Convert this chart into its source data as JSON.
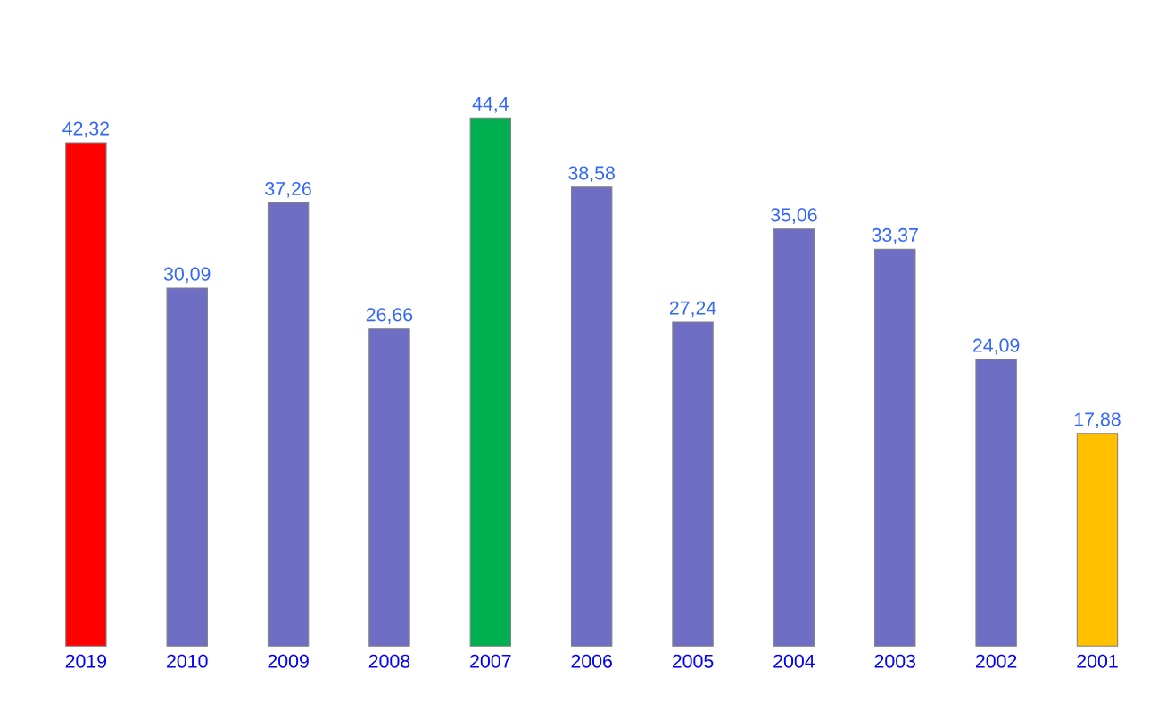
{
  "chart_data": {
    "type": "bar",
    "categories": [
      "2019",
      "2010",
      "2009",
      "2008",
      "2007",
      "2006",
      "2005",
      "2004",
      "2003",
      "2002",
      "2001"
    ],
    "values": [
      42.32,
      30.09,
      37.26,
      26.66,
      44.4,
      38.58,
      27.24,
      35.06,
      33.37,
      24.09,
      17.88
    ],
    "colors": [
      "#ff0000",
      "#6e6ec4",
      "#6e6ec4",
      "#6e6ec4",
      "#00b050",
      "#6e6ec4",
      "#6e6ec4",
      "#6e6ec4",
      "#6e6ec4",
      "#6e6ec4",
      "#ffc000"
    ],
    "value_labels": [
      "42,32",
      "30,09",
      "37,26",
      "26,66",
      "44,4",
      "38,58",
      "27,24",
      "35,06",
      "33,37",
      "24,09",
      "17,88"
    ]
  }
}
